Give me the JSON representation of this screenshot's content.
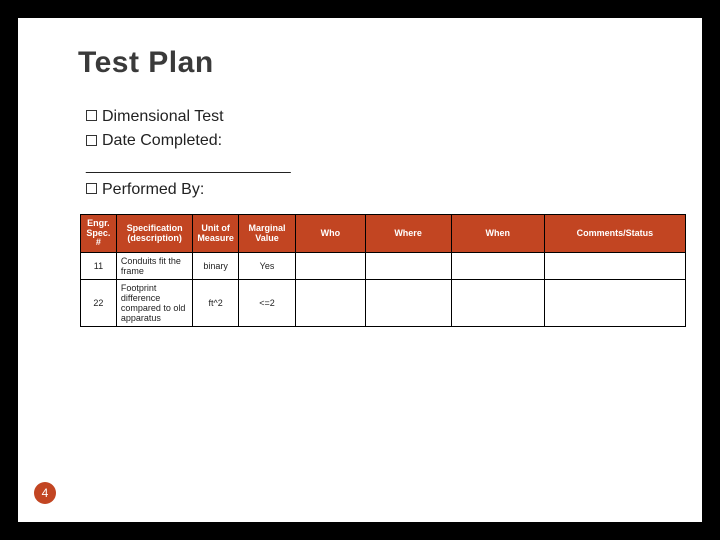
{
  "title": "Test Plan",
  "bullets": {
    "b1": "Dimensional Test",
    "b2": "Date Completed:",
    "blank": "_______________________",
    "b3": "Performed By:"
  },
  "table": {
    "background_header": "#c24522",
    "headers": {
      "h0": "Engr. Spec. #",
      "h1": "Specification (description)",
      "h2": "Unit of Measure",
      "h3": "Marginal Value",
      "h4": "Who",
      "h5": "Where",
      "h6": "When",
      "h7": "Comments/Status"
    },
    "rows": [
      {
        "spec_num": "11",
        "desc": "Conduits fit the frame",
        "unit": "binary",
        "marginal": "Yes",
        "who": "",
        "where": "",
        "when": "",
        "comments": ""
      },
      {
        "spec_num": "22",
        "desc": "Footprint difference compared to old apparatus",
        "unit": "ft^2",
        "marginal": "<=2",
        "who": "",
        "where": "",
        "when": "",
        "comments": ""
      }
    ]
  },
  "page_number": "4"
}
